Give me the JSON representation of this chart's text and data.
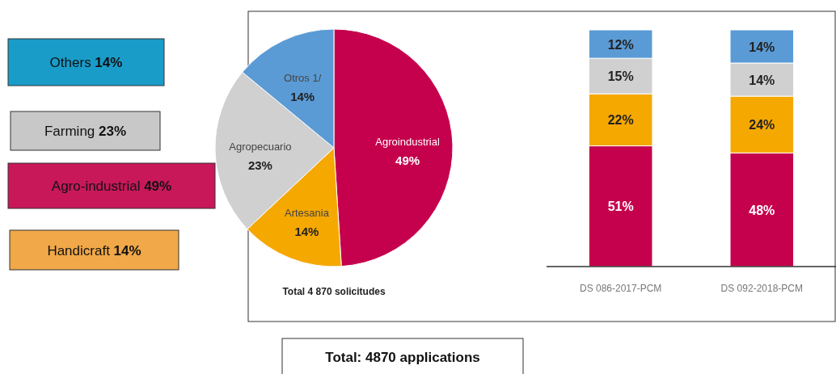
{
  "chart_data": [
    {
      "type": "pie",
      "categories": [
        "Agroindustrial",
        "Artesania",
        "Agropecuario",
        "Otros 1/"
      ],
      "values": [
        49,
        14,
        23,
        14
      ],
      "value_labels": [
        "49%",
        "14%",
        "23%",
        "14%"
      ],
      "colors": [
        "#c5004d",
        "#f5a800",
        "#d0d0d0",
        "#5b9bd5"
      ],
      "annotations": [
        "Total 4 870 solicitudes",
        "Others 14%",
        "Farming 23%",
        "Agro-industrial 49%",
        "Handicraft 14%",
        "Total: 4870 applications"
      ]
    },
    {
      "type": "bar",
      "stacked": true,
      "categories": [
        "DS 086-2017-PCM",
        "DS 092-2018-PCM"
      ],
      "series": [
        {
          "color": "#c5004d",
          "values": [
            51,
            48
          ],
          "value_labels": [
            "51%",
            "48%"
          ]
        },
        {
          "color": "#f5a800",
          "values": [
            22,
            24
          ],
          "value_labels": [
            "22%",
            "24%"
          ]
        },
        {
          "color": "#d0d0d0",
          "values": [
            15,
            14
          ],
          "value_labels": [
            "15%",
            "14%"
          ]
        },
        {
          "color": "#5b9bd5",
          "values": [
            12,
            14
          ],
          "value_labels": [
            "12%",
            "14%"
          ]
        }
      ]
    }
  ]
}
